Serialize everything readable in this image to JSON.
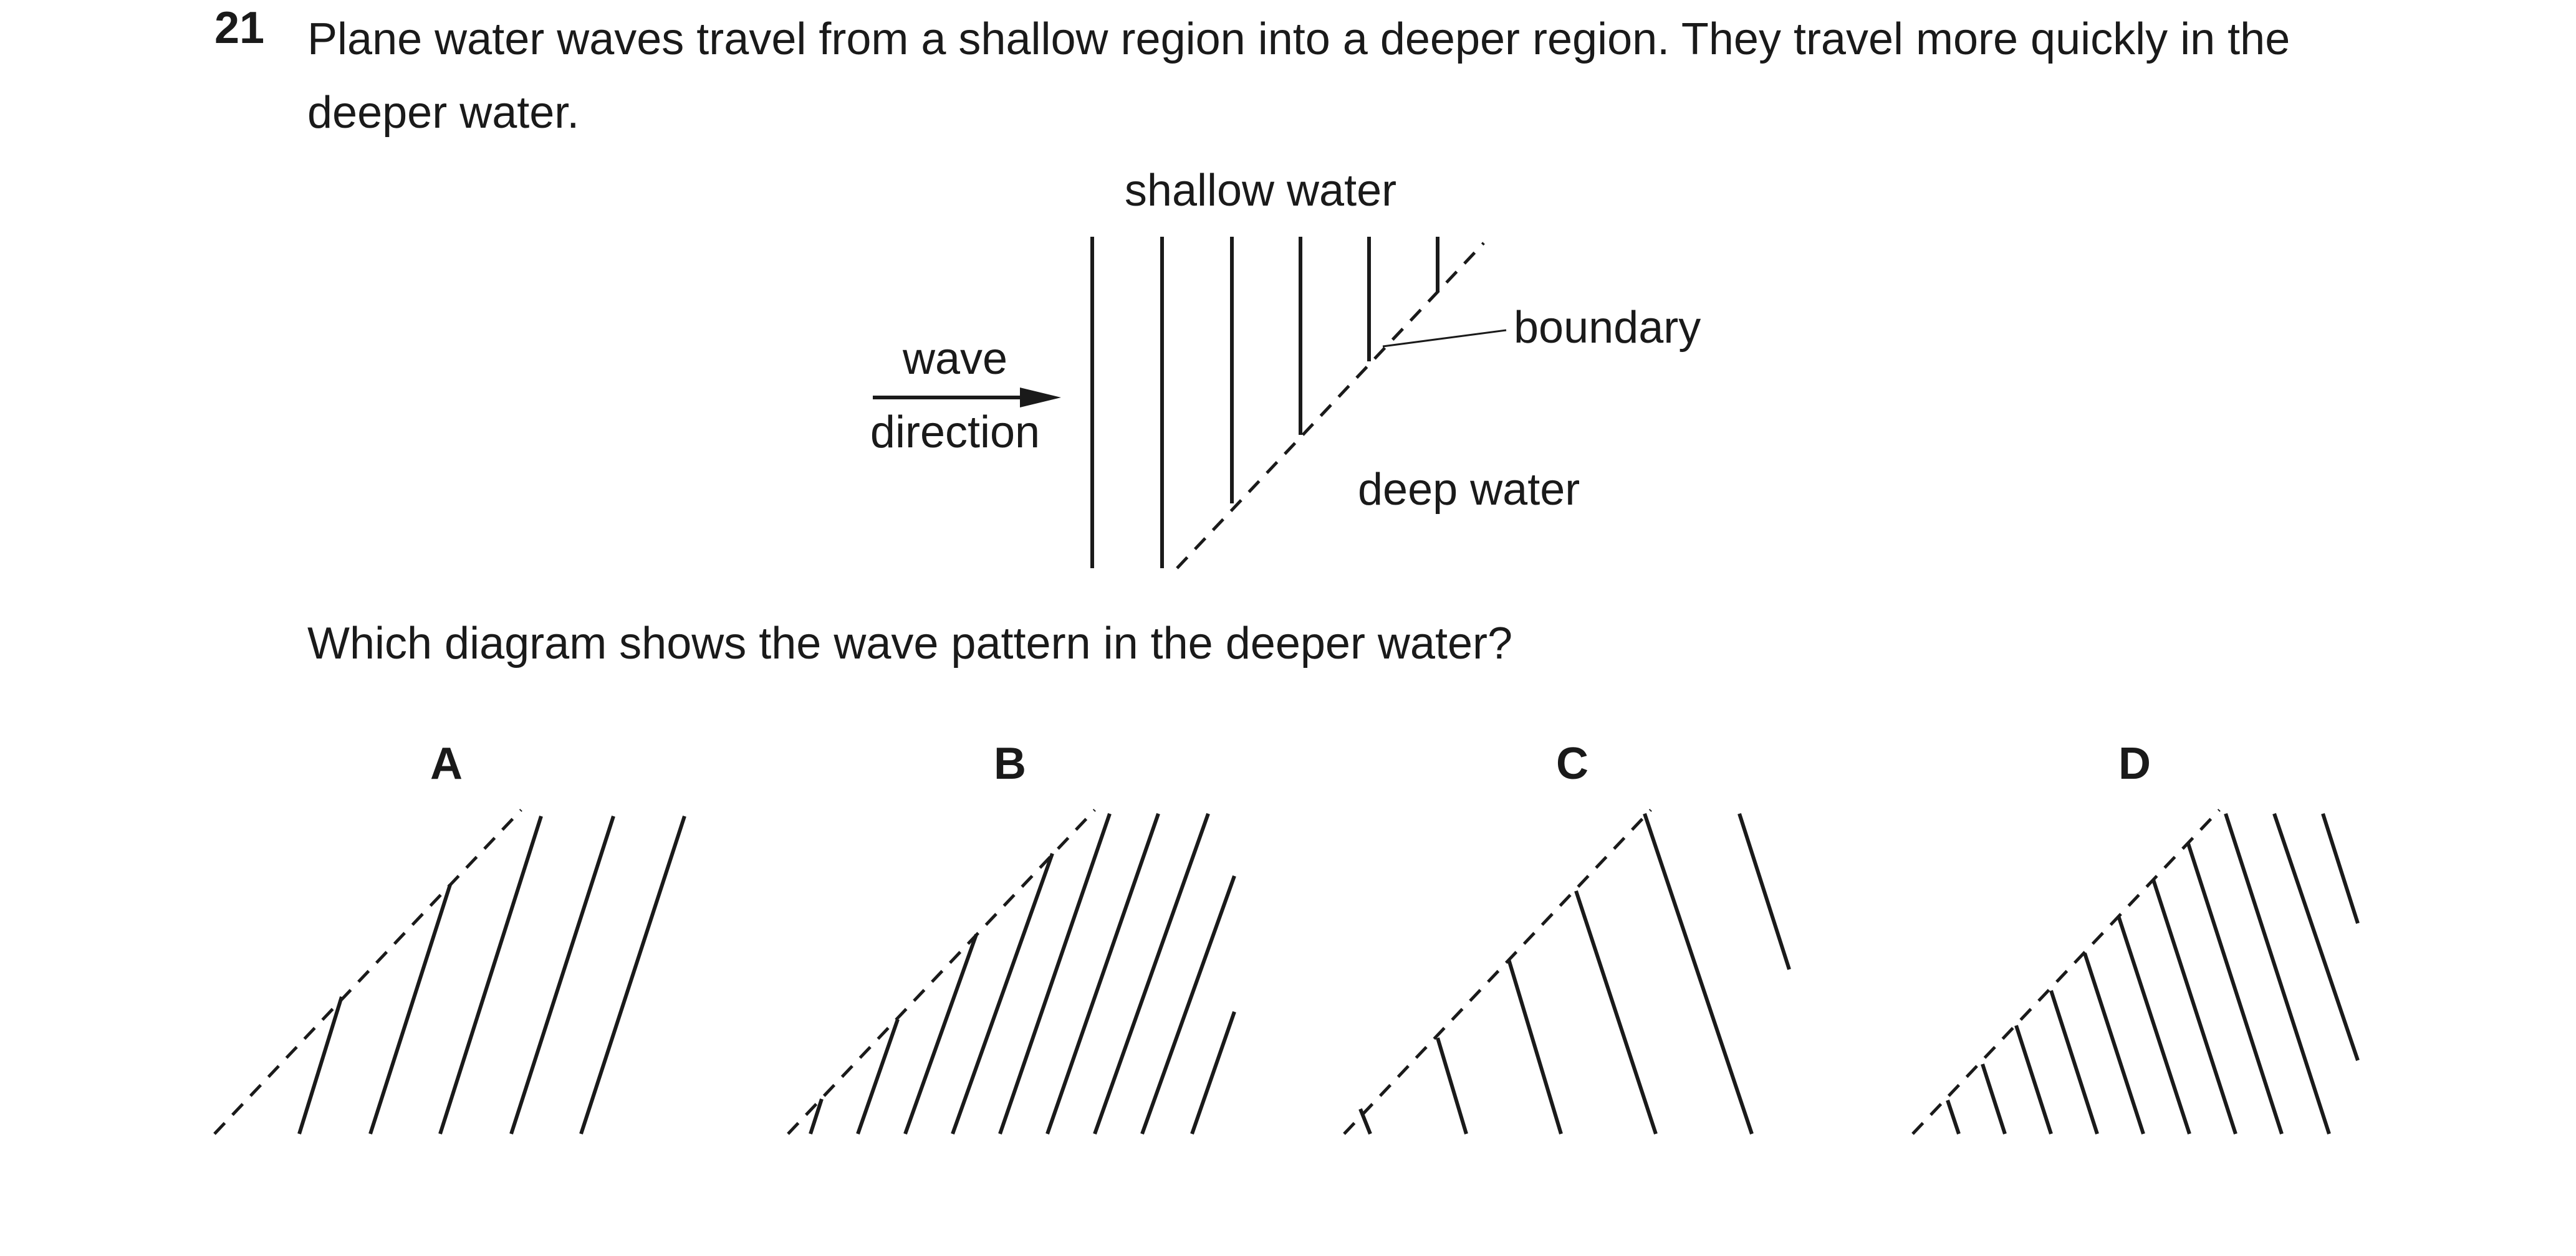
{
  "question": {
    "number": "21",
    "text": "Plane water waves travel from a shallow region into a deeper region. They travel more quickly in the deeper water.",
    "prompt": "Which diagram shows the wave pattern in the deeper water?"
  },
  "diagram": {
    "shallow_label": "shallow water",
    "deep_label": "deep water",
    "boundary_label": "boundary",
    "direction_label_1": "wave",
    "direction_label_2": "direction"
  },
  "options": [
    "A",
    "B",
    "C",
    "D"
  ]
}
